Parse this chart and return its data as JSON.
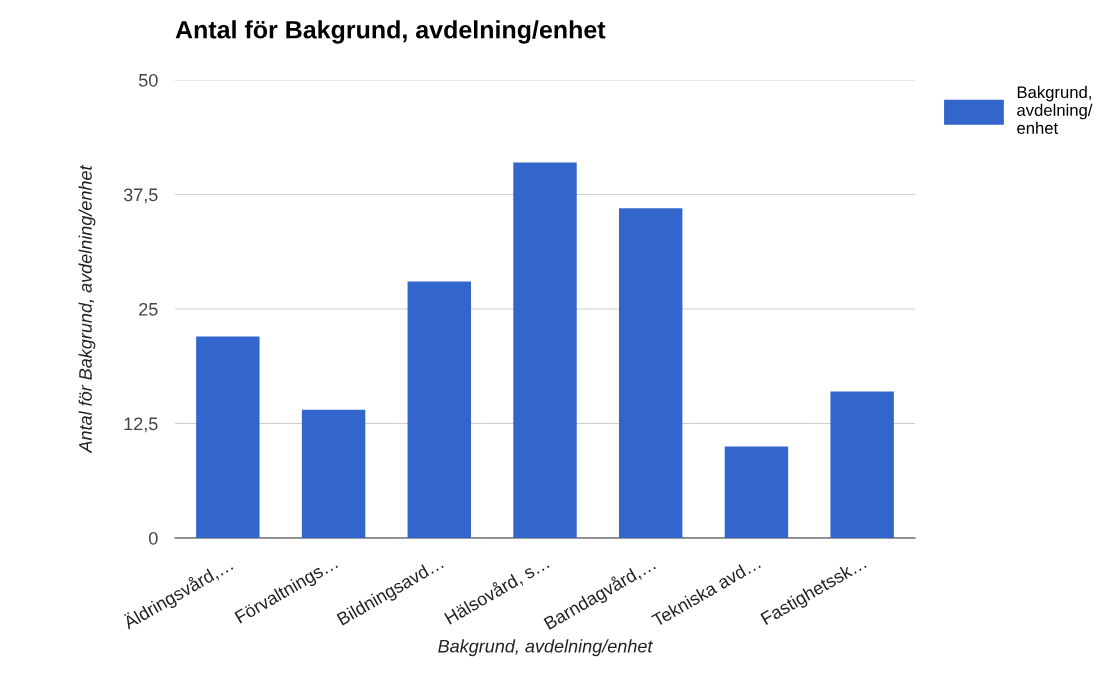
{
  "chart_data": {
    "type": "bar",
    "title": "Antal för Bakgrund, avdelning/enhet",
    "xlabel": "Bakgrund, avdelning/enhet",
    "ylabel": "Antal för Bakgrund, avdelning/enhet",
    "categories": [
      "Äldringsvård,…",
      "Förvaltnings…",
      "Bildningsavd…",
      "Hälsovård, s…",
      "Barndagvård,…",
      "Tekniska avd…",
      "Fastighetssk…"
    ],
    "series": [
      {
        "name": "Bakgrund, avdelning/enhet",
        "color": "#3366cc",
        "values": [
          22,
          14,
          28,
          41,
          36,
          10,
          16
        ]
      }
    ],
    "ylim": [
      0,
      50
    ],
    "yticks": [
      0,
      {
        "value": 12.5,
        "label": "12,5"
      },
      25,
      {
        "value": 37.5,
        "label": "37,5"
      },
      50
    ],
    "grid": "y",
    "legend": "top right"
  }
}
